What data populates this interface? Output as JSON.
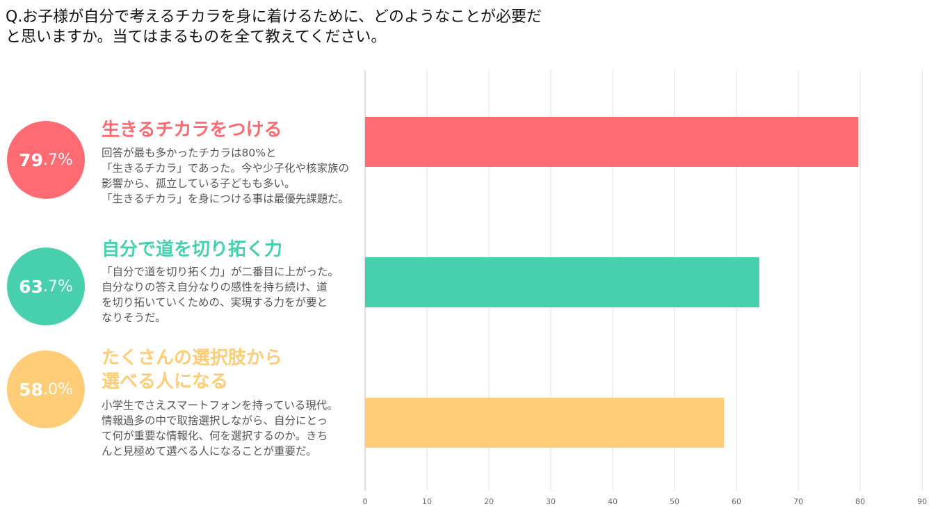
{
  "question": {
    "lines": [
      "Q.お子様が自分で考えるチカラを身に着けるために、どのようなことが必要だ",
      "と思いますか。当てはまるものを全て教えてください。"
    ]
  },
  "items": [
    {
      "color": "#ff6b72",
      "pct_int": "79",
      "pct_dec": ".7",
      "pct_sign": "%",
      "heading_lines": [
        "生きるチカラをつける"
      ],
      "desc_lines": [
        "回答が最も多かったチカラは80%と",
        "「生きるチカラ」であった。今や少子化や核家族の",
        "影響から、孤立している子どもも多い。",
        "「生きるチカラ」を身につける事は最優先課題だ。"
      ]
    },
    {
      "color": "#48cfae",
      "pct_int": "63",
      "pct_dec": ".7",
      "pct_sign": "%",
      "heading_lines": [
        "自分で道を切り拓く力"
      ],
      "desc_lines": [
        "「自分で道を切り拓く力」が二番目に上がった。",
        "自分なりの答え自分なりの感性を持ち続け、道",
        "を切り拓いていくための、実現する力をが要と",
        "なりそうだ。"
      ]
    },
    {
      "color": "#ffcc77",
      "pct_int": "58",
      "pct_dec": ".0",
      "pct_sign": "%",
      "heading_lines": [
        "たくさんの選択肢から",
        "選べる人になる"
      ],
      "desc_lines": [
        "小学生でさえスマートフォンを持っている現代。",
        "情報過多の中で取捨選択しながら、自分にとっ",
        "て何が重要な情報化、何を選択するのか。きち",
        "んと見極めて選べる人になることが重要だ。"
      ]
    }
  ],
  "chart_data": {
    "type": "bar",
    "orientation": "horizontal",
    "categories": [
      "生きるチカラをつける",
      "自分で道を切り拓く力",
      "たくさんの選択肢から選べる人になる"
    ],
    "values": [
      79.7,
      63.7,
      58.0
    ],
    "colors": [
      "#ff6b72",
      "#48cfae",
      "#ffcc77"
    ],
    "xlim": [
      0,
      90
    ],
    "xticks": [
      0,
      10,
      20,
      30,
      40,
      50,
      60,
      70,
      80,
      90
    ],
    "grid": true
  }
}
